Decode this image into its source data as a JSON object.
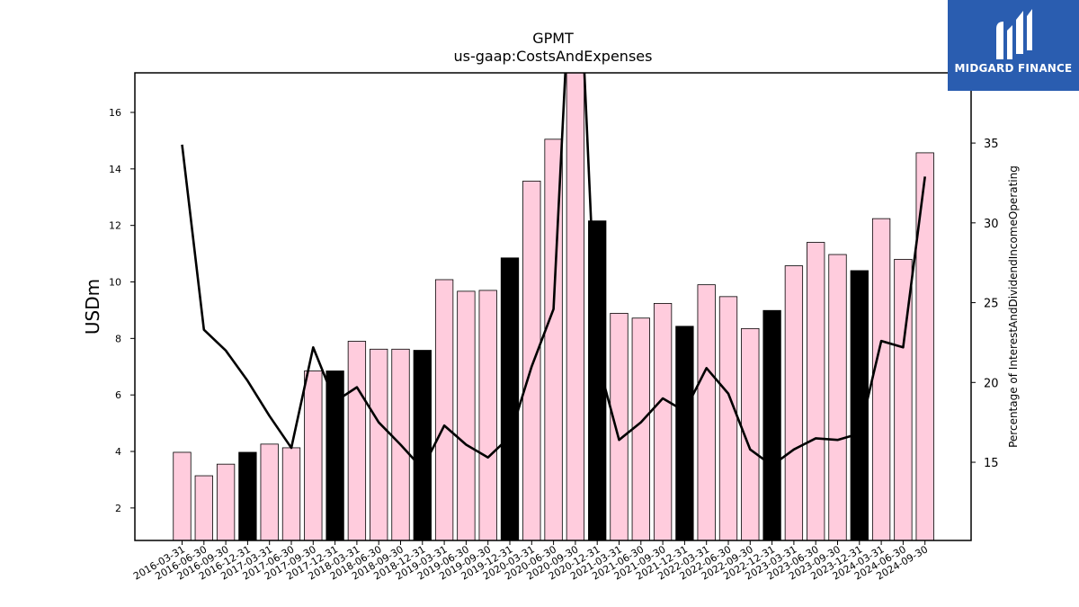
{
  "chart_data": {
    "type": "bar+line",
    "title": "GPMT",
    "subtitle": "us-gaap:CostsAndExpenses",
    "ylabel": "USDm",
    "y2label": "Percentage of InterestAndDividendIncomeOperating",
    "ylim": [
      0.85,
      17.4
    ],
    "y2lim": [
      10.1,
      39.4
    ],
    "yticks": [
      2,
      4,
      6,
      8,
      10,
      12,
      14,
      16
    ],
    "y2ticks": [
      15,
      20,
      25,
      30,
      35
    ],
    "categories": [
      "2016-03-31",
      "2016-06-30",
      "2016-09-30",
      "2016-12-31",
      "2017-03-31",
      "2017-06-30",
      "2017-09-30",
      "2017-12-31",
      "2018-03-31",
      "2018-06-30",
      "2018-09-30",
      "2018-12-31",
      "2019-03-31",
      "2019-06-30",
      "2019-09-30",
      "2019-12-31",
      "2020-03-31",
      "2020-06-30",
      "2020-09-30",
      "2020-12-31",
      "2021-03-31",
      "2021-06-30",
      "2021-09-30",
      "2021-12-31",
      "2022-03-31",
      "2022-06-30",
      "2022-09-30",
      "2022-12-31",
      "2023-03-31",
      "2023-06-30",
      "2023-09-30",
      "2023-12-31",
      "2024-03-31",
      "2024-06-30",
      "2024-09-30"
    ],
    "series": [
      {
        "kind": "bar",
        "values": [
          3.97,
          3.14,
          3.55,
          3.97,
          4.26,
          4.13,
          6.85,
          6.85,
          7.9,
          7.62,
          7.62,
          7.58,
          10.08,
          9.67,
          9.7,
          10.85,
          13.57,
          15.05,
          17.6,
          12.16,
          8.89,
          8.72,
          9.24,
          8.43,
          9.9,
          9.48,
          8.35,
          8.99,
          10.57,
          11.4,
          10.97,
          10.4,
          12.24,
          10.8,
          14.57
        ],
        "colors": [
          "#ffccdd",
          "#ffccdd",
          "#ffccdd",
          "#000000",
          "#ffccdd",
          "#ffccdd",
          "#ffccdd",
          "#000000",
          "#ffccdd",
          "#ffccdd",
          "#ffccdd",
          "#000000",
          "#ffccdd",
          "#ffccdd",
          "#ffccdd",
          "#000000",
          "#ffccdd",
          "#ffccdd",
          "#ffccdd",
          "#000000",
          "#ffccdd",
          "#ffccdd",
          "#ffccdd",
          "#000000",
          "#ffccdd",
          "#ffccdd",
          "#ffccdd",
          "#000000",
          "#ffccdd",
          "#ffccdd",
          "#ffccdd",
          "#000000",
          "#ffccdd",
          "#ffccdd",
          "#ffccdd"
        ]
      },
      {
        "kind": "line",
        "axis": "right",
        "color": "#000000",
        "values": [
          34.9,
          23.3,
          22.0,
          20.1,
          17.9,
          15.9,
          22.2,
          18.8,
          19.7,
          17.5,
          16.1,
          14.6,
          17.3,
          16.1,
          15.3,
          16.6,
          21.0,
          24.6,
          52.0,
          21.5,
          16.4,
          17.5,
          19.0,
          18.2,
          20.9,
          19.3,
          15.8,
          14.8,
          15.8,
          16.5,
          16.4,
          16.8,
          22.6,
          22.2,
          32.9
        ]
      }
    ],
    "grid": false,
    "legend": "none"
  },
  "logo": {
    "text": "MIDGARD FINANCE",
    "background": "#2a5db0"
  }
}
